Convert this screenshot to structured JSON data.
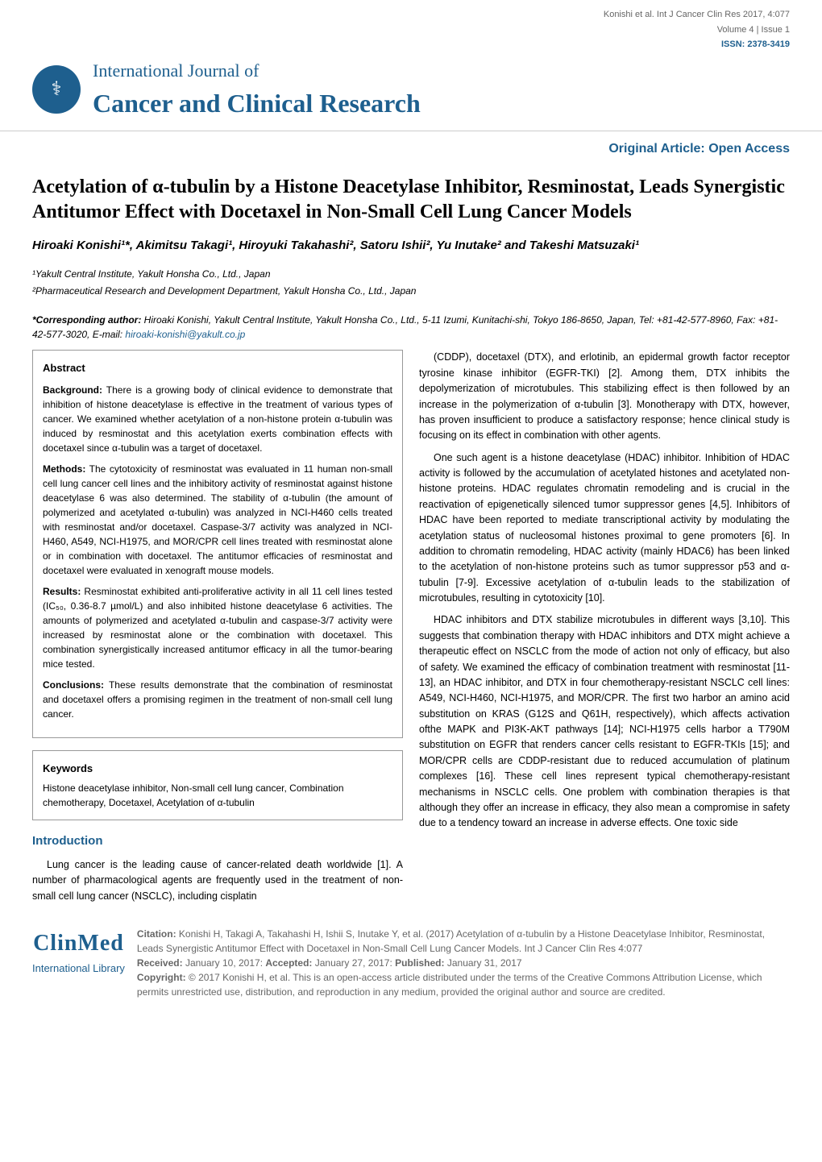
{
  "meta": {
    "citation_line": "Konishi et al. Int J Cancer Clin Res 2017, 4:077",
    "volume_issue": "Volume 4 | Issue 1",
    "issn": "ISSN: 2378-3419"
  },
  "journal": {
    "supertitle": "International Journal of",
    "title": "Cancer and Clinical Research",
    "logo_glyph": "⚕"
  },
  "article_type": "Original Article: Open Access",
  "title": "Acetylation of α-tubulin by a Histone Deacetylase Inhibitor, Resminostat, Leads Synergistic Antitumor Effect with Docetaxel in Non-Small Cell Lung Cancer Models",
  "authors": "Hiroaki Konishi¹*, Akimitsu Takagi¹, Hiroyuki Takahashi², Satoru Ishii², Yu Inutake² and Takeshi Matsuzaki¹",
  "affiliations": {
    "aff1": "¹Yakult Central Institute, Yakult Honsha Co., Ltd., Japan",
    "aff2": "²Pharmaceutical Research and Development Department, Yakult Honsha Co., Ltd., Japan"
  },
  "corresponding": {
    "label": "*Corresponding author:",
    "text": "Hiroaki Konishi, Yakult Central Institute, Yakult Honsha Co., Ltd., 5-11 Izumi, Kunitachi-shi, Tokyo 186-8650, Japan, Tel: +81-42-577-8960, Fax: +81-42-577-3020, E-mail: ",
    "email": "hiroaki-konishi@yakult.co.jp"
  },
  "abstract": {
    "heading": "Abstract",
    "background_label": "Background:",
    "background": "There is a growing body of clinical evidence to demonstrate that inhibition of histone deacetylase is effective in the treatment of various types of cancer. We examined whether acetylation of a non-histone protein α-tubulin was induced by resminostat and this acetylation exerts combination effects with docetaxel since α-tubulin was a target of docetaxel.",
    "methods_label": "Methods:",
    "methods": "The cytotoxicity of resminostat was evaluated in 11 human non-small cell lung cancer cell lines and the inhibitory activity of resminostat against histone deacetylase 6 was also determined. The stability of α-tubulin (the amount of polymerized and acetylated α-tubulin) was analyzed in NCI-H460 cells treated with resminostat and/or docetaxel. Caspase-3/7 activity was analyzed in NCI-H460, A549, NCI-H1975, and MOR/CPR cell lines treated with resminostat alone or in combination with docetaxel. The antitumor efficacies of resminostat and docetaxel were evaluated in xenograft mouse models.",
    "results_label": "Results:",
    "results": "Resminostat exhibited anti-proliferative activity in all 11 cell lines tested (IC₅₀, 0.36-8.7 µmol/L) and also inhibited histone deacetylase 6 activities. The amounts of polymerized and acetylated α-tubulin and caspase-3/7 activity were increased by resminostat alone or the combination with docetaxel. This combination synergistically increased antitumor efficacy in all the tumor-bearing mice tested.",
    "conclusions_label": "Conclusions:",
    "conclusions": "These results demonstrate that the combination of resminostat and docetaxel offers a promising regimen in the treatment of non-small cell lung cancer."
  },
  "keywords": {
    "heading": "Keywords",
    "text": "Histone deacetylase inhibitor, Non-small cell lung cancer, Combination chemotherapy, Docetaxel, Acetylation of α-tubulin"
  },
  "introduction": {
    "heading": "Introduction",
    "p1": "Lung cancer is the leading cause of cancer-related death worldwide [1]. A number of pharmacological agents are frequently used in the treatment of non-small cell lung cancer (NSCLC), including cisplatin",
    "p2": "(CDDP), docetaxel (DTX), and erlotinib, an epidermal growth factor receptor tyrosine kinase inhibitor (EGFR-TKI) [2]. Among them, DTX inhibits the depolymerization of microtubules. This stabilizing effect is then followed by an increase in the polymerization of α-tubulin [3]. Monotherapy with DTX, however, has proven insufficient to produce a satisfactory response; hence clinical study is focusing on its effect in combination with other agents.",
    "p3": "One such agent is a histone deacetylase (HDAC) inhibitor. Inhibition of HDAC activity is followed by the accumulation of acetylated histones and acetylated non-histone proteins. HDAC regulates chromatin remodeling and is crucial in the reactivation of epigenetically silenced tumor suppressor genes [4,5]. Inhibitors of HDAC have been reported to mediate transcriptional activity by modulating the acetylation status of nucleosomal histones proximal to gene promoters [6]. In addition to chromatin remodeling, HDAC activity (mainly HDAC6) has been linked to the acetylation of non-histone proteins such as tumor suppressor p53 and α-tubulin [7-9]. Excessive acetylation of α-tubulin leads to the stabilization of microtubules, resulting in cytotoxicity [10].",
    "p4": "HDAC inhibitors and DTX stabilize microtubules in different ways [3,10]. This suggests that combination therapy with HDAC inhibitors and DTX might achieve a therapeutic effect on NSCLC from the mode of action not only of efficacy, but also of safety. We examined the efficacy of combination treatment with resminostat [11-13], an HDAC inhibitor, and DTX in four chemotherapy-resistant NSCLC cell lines: A549, NCI-H460, NCI-H1975, and MOR/CPR. The first two harbor an amino acid substitution on KRAS (G12S and Q61H, respectively), which affects activation ofthe MAPK and PI3K-AKT pathways [14]; NCI-H1975 cells harbor a T790M substitution on EGFR that renders cancer cells resistant to EGFR-TKIs [15]; and MOR/CPR cells are CDDP-resistant due to reduced accumulation of platinum complexes [16]. These cell lines represent typical chemotherapy-resistant mechanisms in NSCLC cells. One problem with combination therapies is that although they offer an increase in efficacy, they also mean a compromise in safety due to a tendency toward an increase in adverse effects. One toxic side"
  },
  "footer": {
    "brand": "ClinMed",
    "subbrand": "International Library",
    "citation_label": "Citation:",
    "citation": "Konishi H, Takagi A, Takahashi H, Ishii S, Inutake Y, et al. (2017) Acetylation of α-tubulin by a Histone Deacetylase Inhibitor, Resminostat, Leads Synergistic Antitumor Effect with Docetaxel in Non-Small Cell Lung Cancer Models. Int J Cancer Clin Res 4:077",
    "received_label": "Received:",
    "received": "January 10, 2017:",
    "accepted_label": "Accepted:",
    "accepted": "January 27, 2017:",
    "published_label": "Published:",
    "published": "January 31, 2017",
    "copyright_label": "Copyright:",
    "copyright": "© 2017 Konishi H, et al. This is an open-access article distributed under the terms of the Creative Commons Attribution License, which permits unrestricted use, distribution, and reproduction in any medium, provided the original author and source are credited."
  },
  "colors": {
    "primary": "#1e5f8e",
    "text": "#000000",
    "muted": "#666666",
    "border": "#999999"
  }
}
